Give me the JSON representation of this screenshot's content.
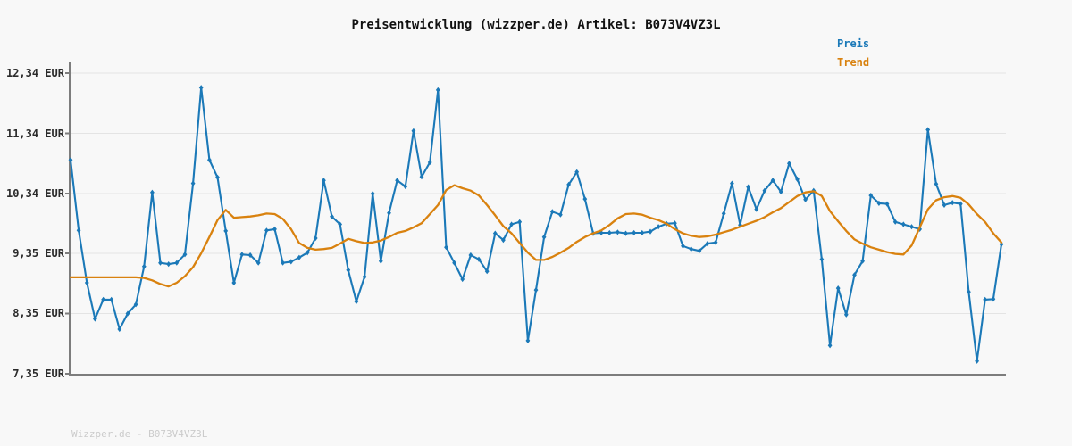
{
  "header": {
    "title": "Preisentwicklung (wizzper.de) Artikel: B073V4VZ3L"
  },
  "legend": {
    "items": [
      {
        "label": "Preis",
        "color": "#1b79b8"
      },
      {
        "label": "Trend",
        "color": "#d9820f"
      }
    ]
  },
  "footer": {
    "watermark": "Wizzper.de - B073V4VZ3L"
  },
  "chart_data": {
    "type": "line",
    "title": "Preisentwicklung (wizzper.de) Artikel: B073V4VZ3L",
    "currency": "EUR",
    "ylim": [
      7.35,
      12.34
    ],
    "grid": "horizontal",
    "legend_position": "top-right",
    "x_axis": {
      "tick_labels": "none",
      "points": 115
    },
    "yticks": [
      {
        "value": 12.34,
        "label": "12,34 EUR"
      },
      {
        "value": 11.34,
        "label": "11,34 EUR"
      },
      {
        "value": 10.34,
        "label": "10,34 EUR"
      },
      {
        "value": 9.35,
        "label": "9,35 EUR"
      },
      {
        "value": 8.35,
        "label": "8,35 EUR"
      },
      {
        "value": 7.35,
        "label": "7,35 EUR"
      }
    ],
    "series": [
      {
        "name": "Preis",
        "color": "#1b79b8",
        "marker": "diamond",
        "values": [
          10.9,
          9.73,
          8.86,
          8.26,
          8.58,
          8.58,
          8.09,
          8.35,
          8.5,
          9.13,
          10.36,
          9.19,
          9.17,
          9.19,
          9.33,
          10.51,
          12.1,
          10.9,
          10.61,
          9.72,
          8.86,
          9.33,
          9.32,
          9.19,
          9.73,
          9.75,
          9.19,
          9.21,
          9.28,
          9.36,
          9.6,
          10.56,
          9.96,
          9.83,
          9.07,
          8.55,
          8.96,
          10.34,
          9.22,
          10.02,
          10.56,
          10.46,
          11.38,
          10.62,
          10.86,
          12.06,
          9.45,
          9.19,
          8.92,
          9.32,
          9.25,
          9.05,
          9.68,
          9.57,
          9.83,
          9.87,
          7.9,
          8.74,
          9.62,
          10.04,
          9.99,
          10.49,
          10.7,
          10.25,
          9.68,
          9.69,
          9.69,
          9.7,
          9.68,
          9.69,
          9.69,
          9.71,
          9.79,
          9.84,
          9.85,
          9.47,
          9.42,
          9.39,
          9.51,
          9.53,
          10.01,
          10.51,
          9.82,
          10.45,
          10.08,
          10.39,
          10.56,
          10.37,
          10.84,
          10.58,
          10.24,
          10.39,
          9.25,
          7.82,
          8.77,
          8.33,
          8.99,
          9.22,
          10.31,
          10.18,
          10.17,
          9.87,
          9.83,
          9.79,
          9.75,
          11.4,
          10.5,
          10.15,
          10.19,
          10.17,
          8.71,
          7.56,
          8.58,
          8.59,
          9.5
        ]
      },
      {
        "name": "Trend",
        "color": "#d9820f",
        "marker": "none",
        "values": [
          8.95,
          8.95,
          8.95,
          8.95,
          8.95,
          8.95,
          8.95,
          8.95,
          8.95,
          8.94,
          8.9,
          8.84,
          8.8,
          8.86,
          8.97,
          9.12,
          9.35,
          9.62,
          9.9,
          10.07,
          9.94,
          9.95,
          9.96,
          9.98,
          10.01,
          10.0,
          9.92,
          9.75,
          9.52,
          9.44,
          9.41,
          9.42,
          9.44,
          9.51,
          9.59,
          9.55,
          9.52,
          9.53,
          9.56,
          9.62,
          9.69,
          9.72,
          9.78,
          9.85,
          10.0,
          10.15,
          10.4,
          10.48,
          10.43,
          10.39,
          10.31,
          10.15,
          9.98,
          9.8,
          9.68,
          9.52,
          9.36,
          9.24,
          9.24,
          9.29,
          9.36,
          9.44,
          9.54,
          9.62,
          9.68,
          9.73,
          9.82,
          9.93,
          10.0,
          10.01,
          9.99,
          9.94,
          9.9,
          9.84,
          9.75,
          9.68,
          9.64,
          9.62,
          9.63,
          9.66,
          9.7,
          9.74,
          9.79,
          9.84,
          9.89,
          9.95,
          10.03,
          10.1,
          10.2,
          10.3,
          10.36,
          10.38,
          10.3,
          10.05,
          9.88,
          9.72,
          9.58,
          9.51,
          9.45,
          9.41,
          9.37,
          9.34,
          9.33,
          9.48,
          9.78,
          10.08,
          10.23,
          10.28,
          10.3,
          10.27,
          10.16,
          10.0,
          9.87,
          9.68,
          9.53
        ]
      }
    ]
  },
  "colors": {
    "background": "#f8f8f8",
    "gridline": "#e4e4e4",
    "axis": "#7d7d7d",
    "tick_text": "#2b2b2b"
  }
}
